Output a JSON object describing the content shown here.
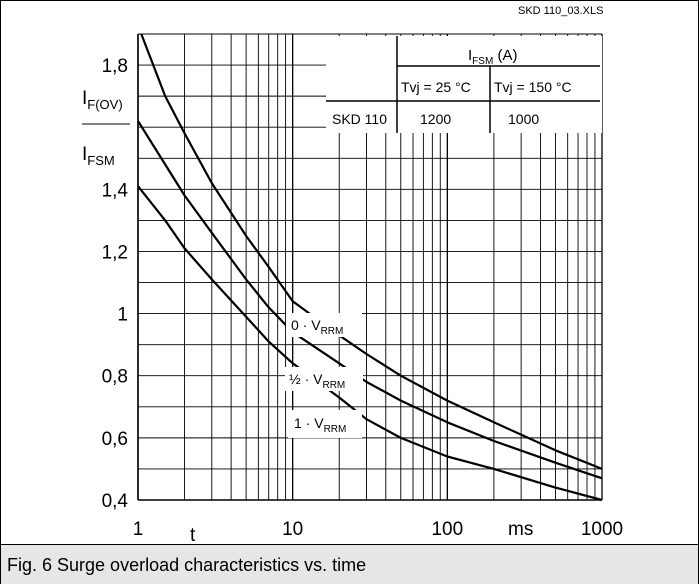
{
  "file_label": "SKD 110_03.XLS",
  "caption": "Fig. 6 Surge overload characteristics vs. time",
  "ylabel": {
    "top_main": "I",
    "top_sub": "F(OV)",
    "bottom_main": "I",
    "bottom_sub": "FSM"
  },
  "xlabel": "t",
  "x_unit": "ms",
  "inset_table": {
    "header_main": "I",
    "header_sub": "FSM",
    "header_unit": " (A)",
    "col1": "Tvj = 25 °C",
    "col2": "Tvj = 150 °C",
    "row_label": "SKD 110",
    "row_val1": "1200",
    "row_val2": "1000"
  },
  "chart_data": {
    "type": "line",
    "x_scale": "log",
    "xlim": [
      1,
      1000
    ],
    "ylim": [
      0.4,
      1.9
    ],
    "grid": true,
    "x_ticks": [
      1,
      10,
      100,
      1000
    ],
    "x_tick_labels": [
      "1",
      "10",
      "100",
      "1000"
    ],
    "y_ticks": [
      0.4,
      0.6,
      0.8,
      1.0,
      1.2,
      1.4,
      1.8
    ],
    "y_tick_labels": [
      "0,4",
      "0,6",
      "0,8",
      "1",
      "1,2",
      "1,4",
      "1,8"
    ],
    "series": [
      {
        "name": "0 · V",
        "label_sub": "RRM",
        "x": [
          1.05,
          1.5,
          2,
          3,
          5,
          7,
          10,
          20,
          30,
          50,
          100,
          200,
          500,
          1000
        ],
        "y": [
          1.9,
          1.7,
          1.58,
          1.42,
          1.25,
          1.15,
          1.04,
          0.93,
          0.87,
          0.8,
          0.72,
          0.65,
          0.56,
          0.5
        ]
      },
      {
        "name": "½ · V",
        "label_sub": "RRM",
        "x": [
          1,
          1.5,
          2,
          3,
          5,
          7,
          10,
          20,
          30,
          50,
          100,
          200,
          500,
          1000
        ],
        "y": [
          1.62,
          1.48,
          1.38,
          1.26,
          1.11,
          1.02,
          0.94,
          0.84,
          0.78,
          0.72,
          0.65,
          0.59,
          0.52,
          0.47
        ]
      },
      {
        "name": "1 · V",
        "label_sub": "RRM",
        "x": [
          1,
          1.5,
          2,
          3,
          5,
          7,
          10,
          20,
          30,
          50,
          100,
          200,
          500,
          1000
        ],
        "y": [
          1.41,
          1.3,
          1.21,
          1.11,
          0.99,
          0.91,
          0.84,
          0.73,
          0.66,
          0.6,
          0.54,
          0.5,
          0.44,
          0.4
        ]
      }
    ]
  }
}
